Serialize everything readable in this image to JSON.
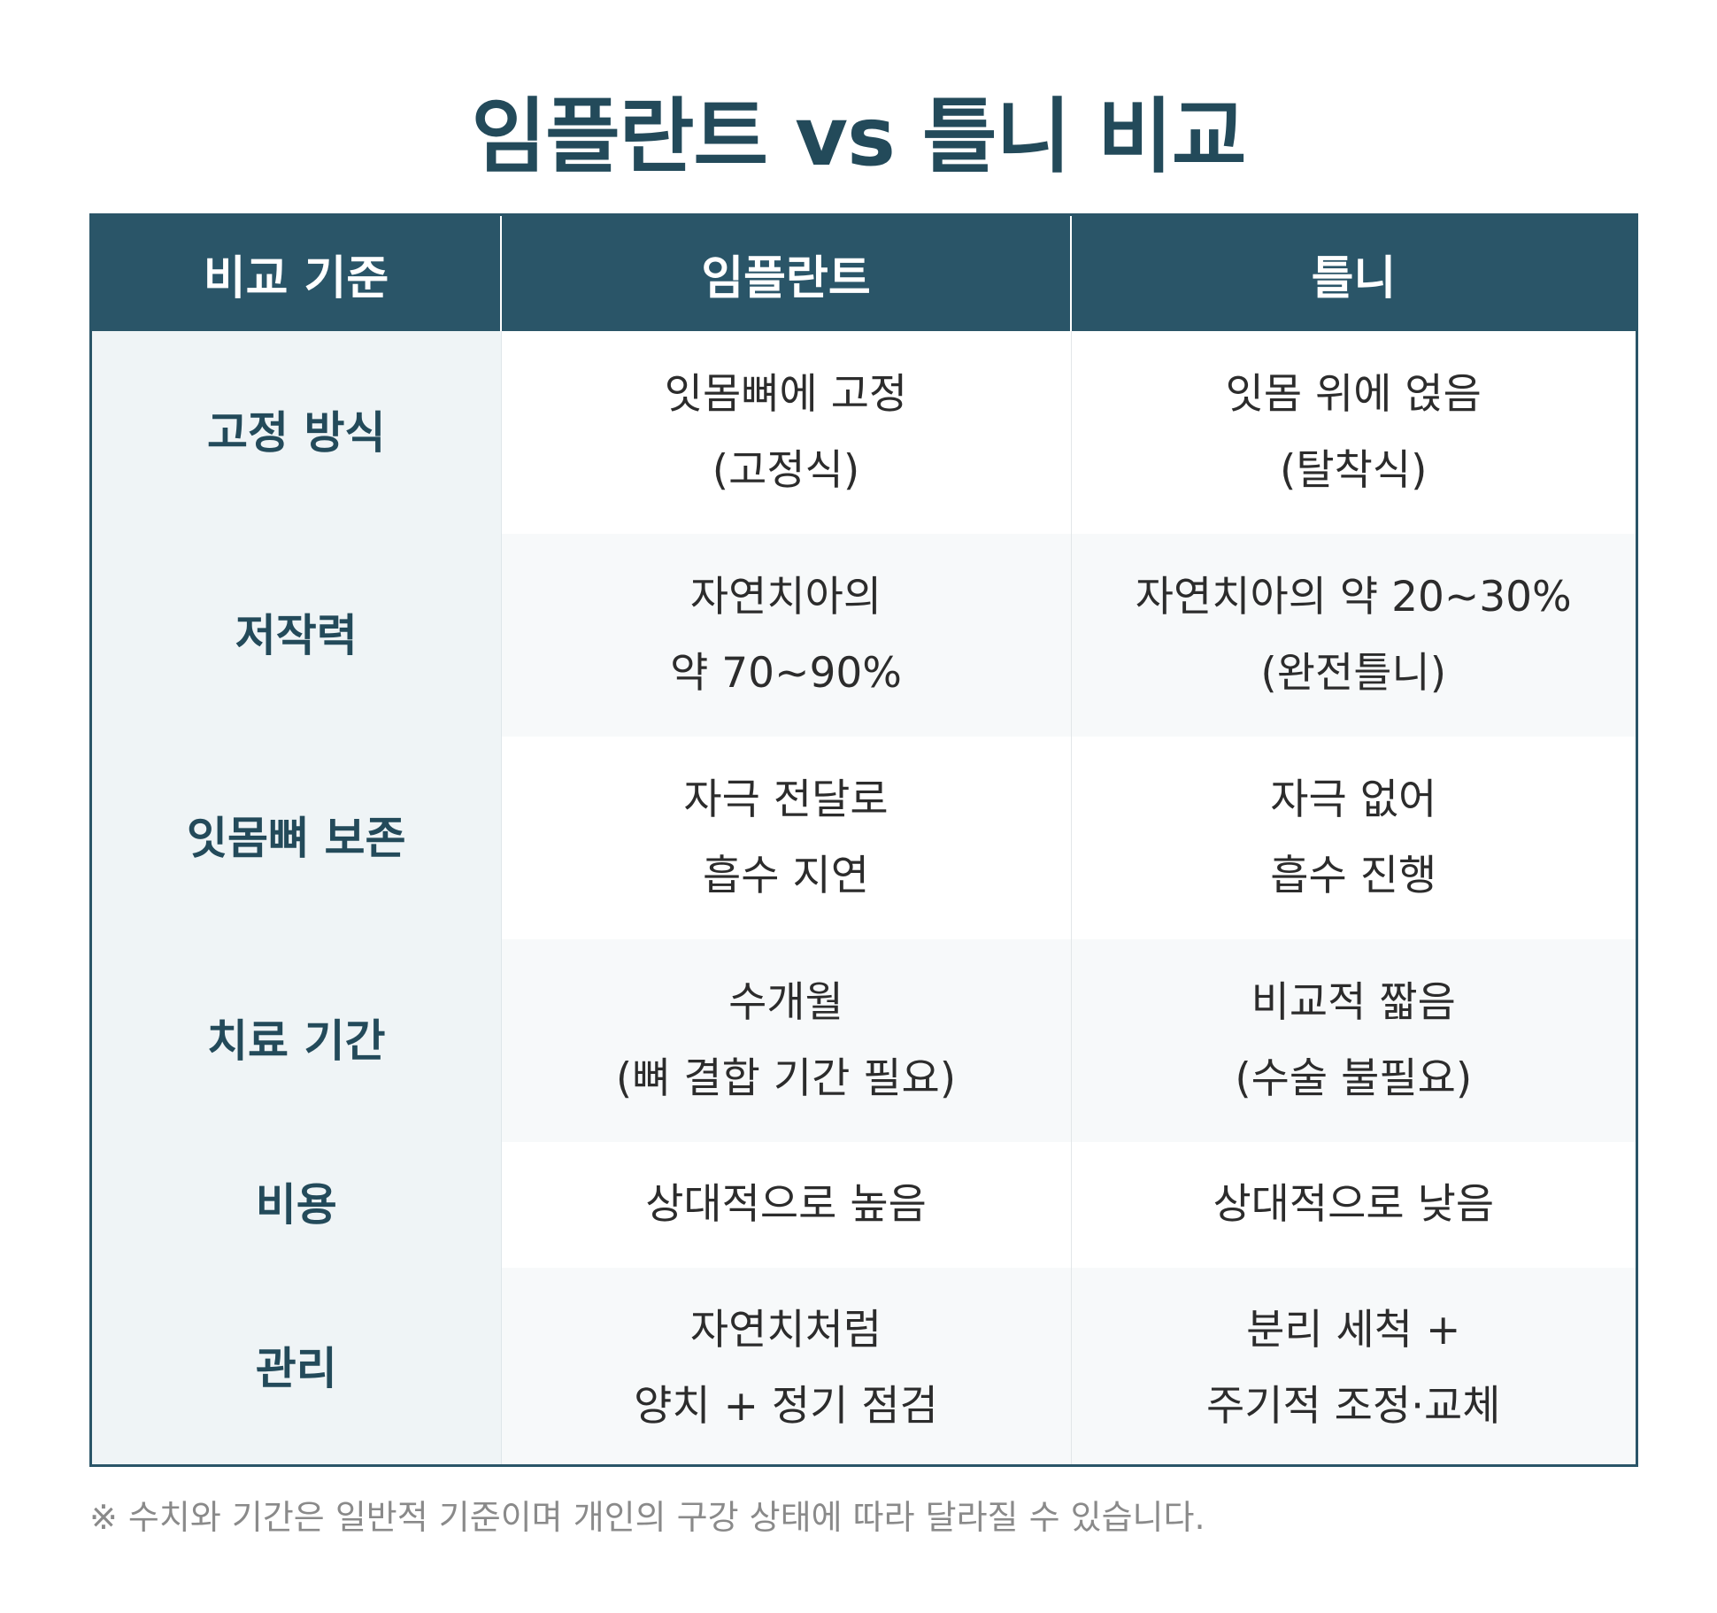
{
  "title": "임플란트 vs 틀니 비교",
  "table": {
    "headers": [
      "비교 기준",
      "임플란트",
      "틀니"
    ],
    "rows": [
      {
        "criterion": "고정 방식",
        "implant": [
          "잇몸뼈에 고정",
          "(고정식)"
        ],
        "denture": [
          "잇몸 위에 얹음",
          "(탈착식)"
        ]
      },
      {
        "criterion": "저작력",
        "implant": [
          "자연치아의",
          "약 70~90%"
        ],
        "denture": [
          "자연치아의 약 20~30%",
          "(완전틀니)"
        ]
      },
      {
        "criterion": "잇몸뼈 보존",
        "implant": [
          "자극 전달로",
          "흡수 지연"
        ],
        "denture": [
          "자극 없어",
          "흡수 진행"
        ]
      },
      {
        "criterion": "치료 기간",
        "implant": [
          "수개월",
          "(뼈 결합 기간 필요)"
        ],
        "denture": [
          "비교적 짧음",
          "(수술 불필요)"
        ]
      },
      {
        "criterion": "비용",
        "implant": [
          "상대적으로 높음"
        ],
        "denture": [
          "상대적으로 낮음"
        ]
      },
      {
        "criterion": "관리",
        "implant": [
          "자연치처럼",
          "양치 + 정기 점검"
        ],
        "denture": [
          "분리 세척 +",
          "주기적 조정·교체"
        ]
      }
    ]
  },
  "footnote": "※ 수치와 기간은 일반적 기준이며 개인의 구강 상태에 따라 달라질 수 있습니다.",
  "colors": {
    "header_bg": "#2a5568",
    "title_text": "#234a5a",
    "criterion_bg": "#eff4f6",
    "footnote_text": "#8a8a8a"
  }
}
